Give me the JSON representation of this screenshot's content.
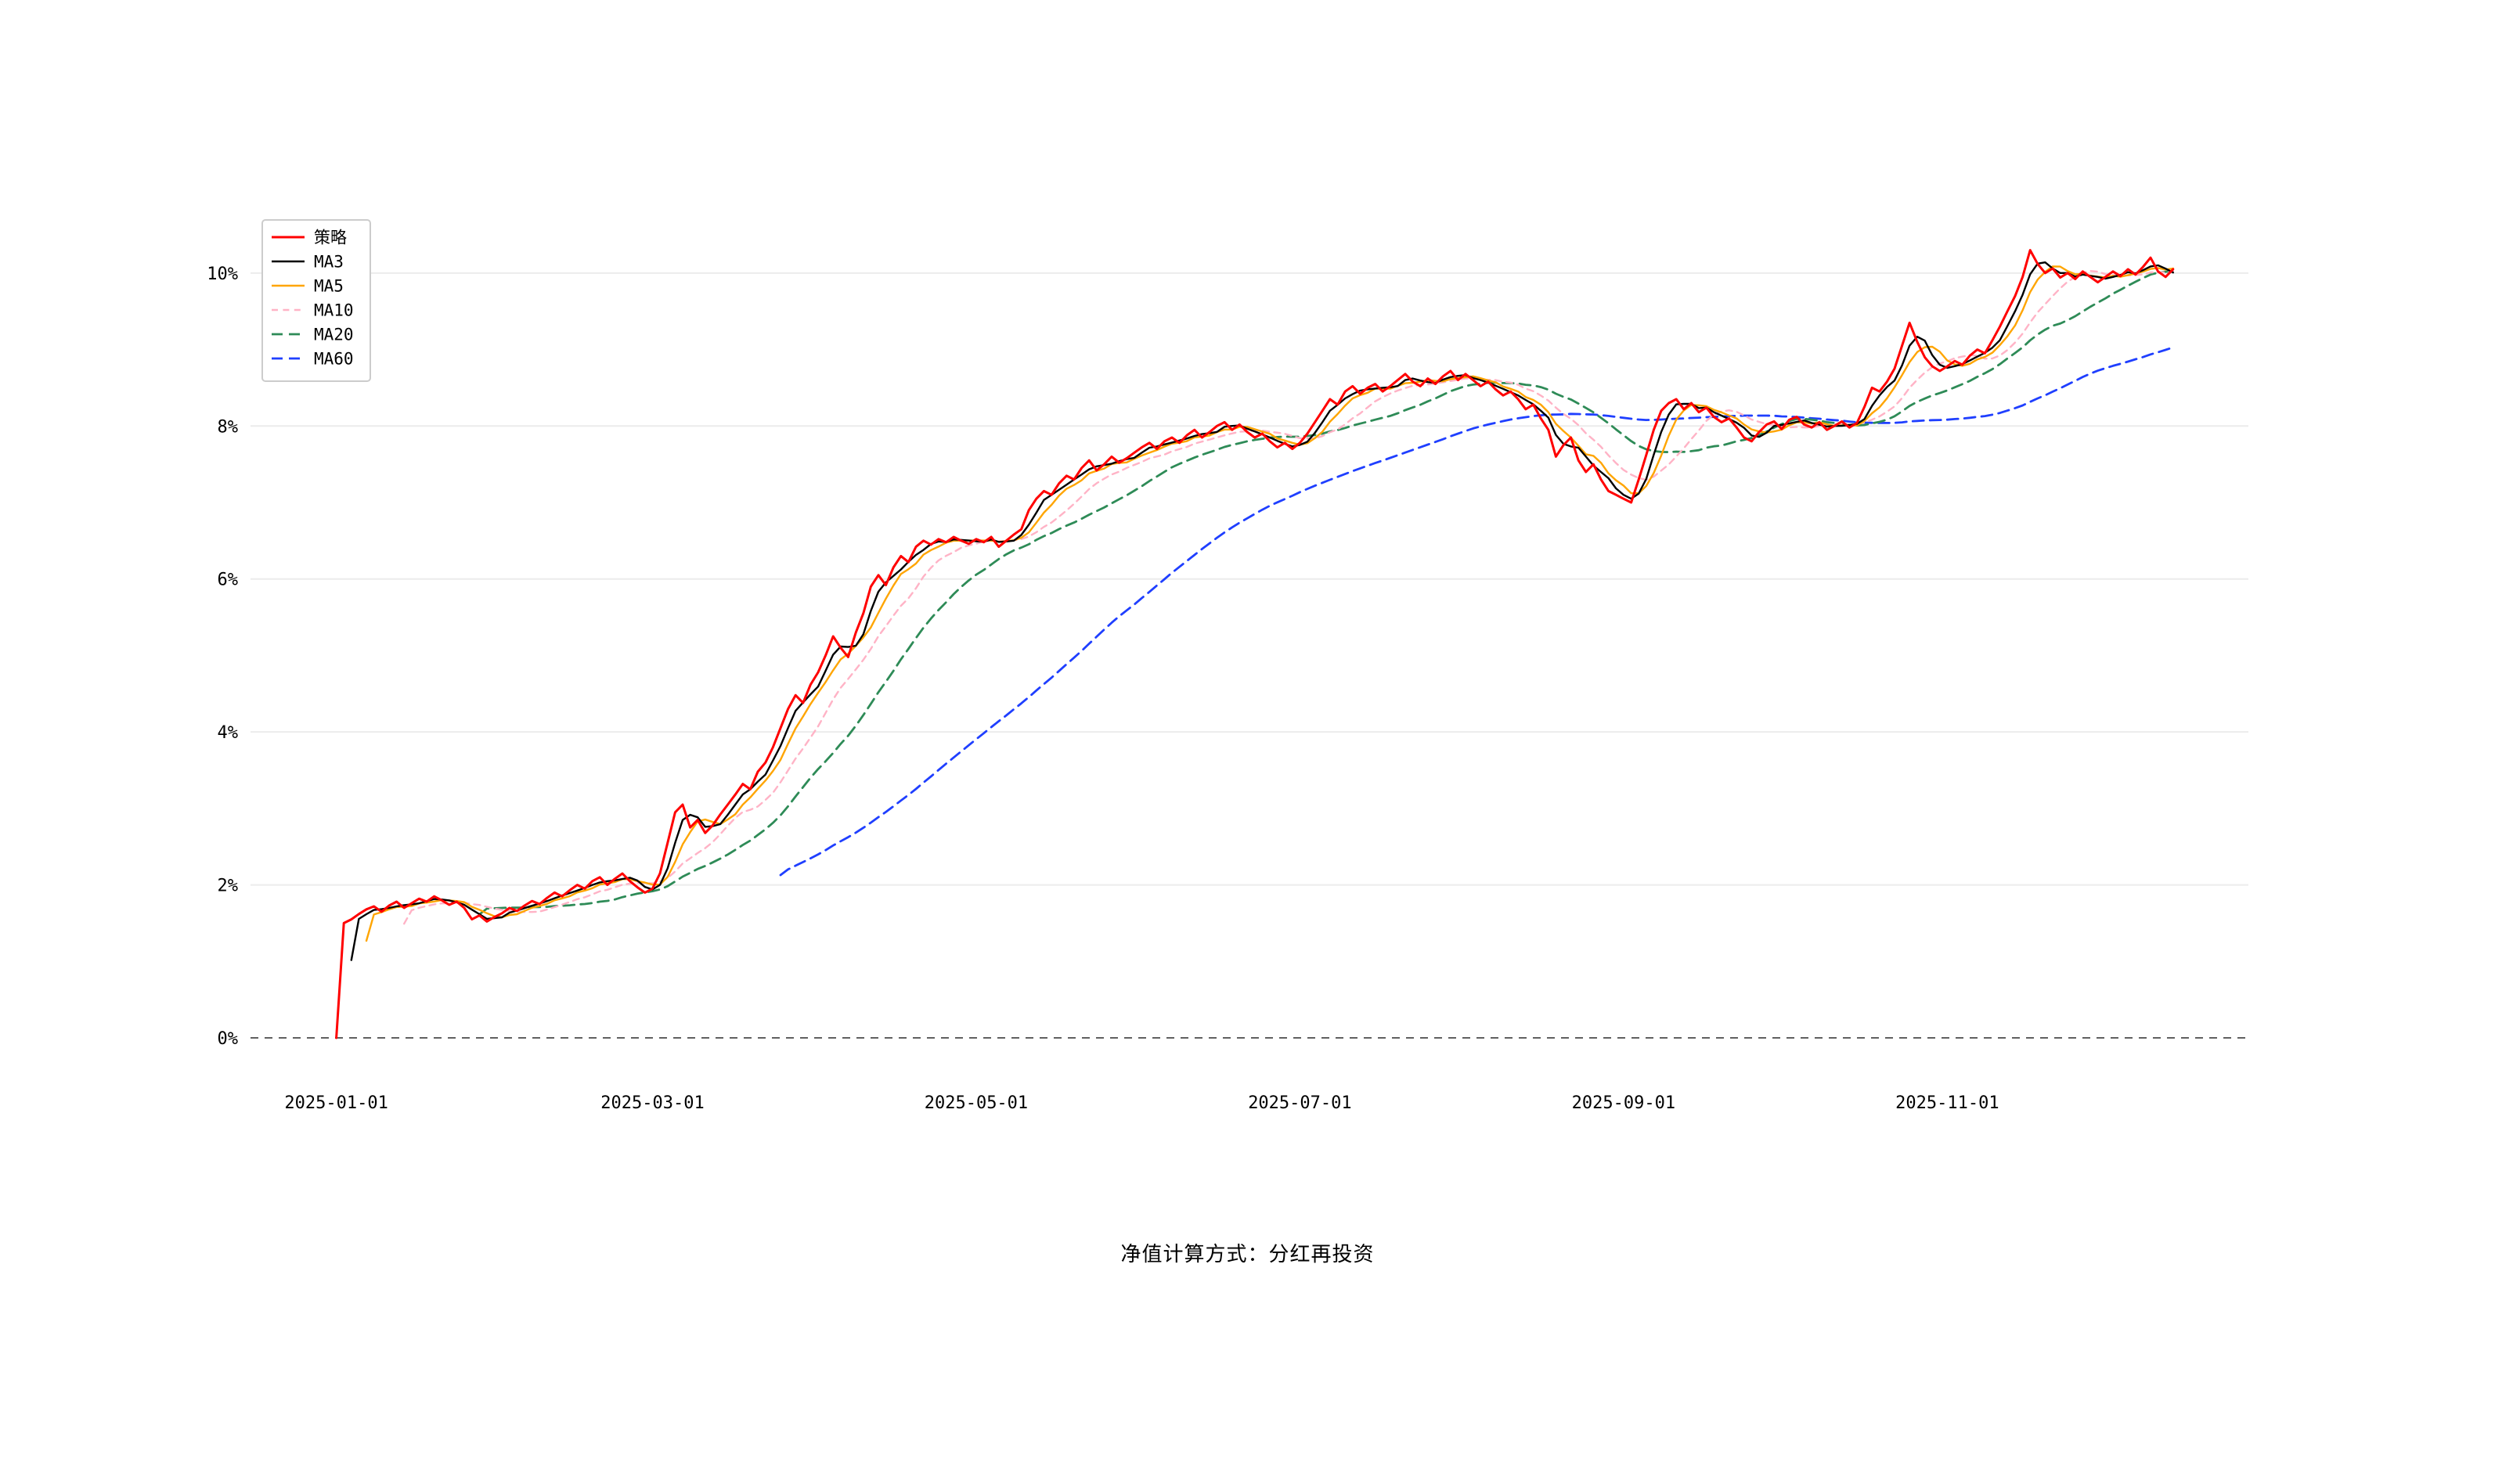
{
  "caption": "净值计算方式：分红再投资",
  "chart_data": {
    "type": "line",
    "title": "",
    "xlabel": "",
    "ylabel": "",
    "y_unit": "%",
    "x_tick_labels": [
      "2025-01-01",
      "2025-03-01",
      "2025-05-01",
      "2025-07-01",
      "2025-09-01",
      "2025-11-01"
    ],
    "x_tick_days": [
      0,
      42,
      85,
      128,
      171,
      214
    ],
    "y_ticks": [
      0,
      2,
      4,
      6,
      8,
      10
    ],
    "ylim": [
      -0.45,
      10.95
    ],
    "xlim": [
      -11.4,
      254
    ],
    "grid": "horizontal-light",
    "zero_line": "black-dashed",
    "legend_position": "top-left-inside",
    "series": [
      {
        "id": "strategy",
        "name": "策略",
        "color": "#ff0000",
        "style": "solid",
        "type": "raw",
        "width": 1.5
      },
      {
        "id": "ma3",
        "name": "MA3",
        "color": "#000000",
        "style": "solid",
        "type": "ma",
        "window": 3,
        "width": 1.2
      },
      {
        "id": "ma5",
        "name": "MA5",
        "color": "#ffa500",
        "style": "solid",
        "type": "ma",
        "window": 5,
        "width": 1.2
      },
      {
        "id": "ma10",
        "name": "MA10",
        "color": "#ffb3c6",
        "style": "dashed",
        "type": "ma",
        "window": 10,
        "width": 1.2,
        "dash": [
          4,
          3.2
        ]
      },
      {
        "id": "ma20",
        "name": "MA20",
        "color": "#2e8b57",
        "style": "dashed",
        "type": "ma",
        "window": 20,
        "width": 1.4,
        "dash": [
          7,
          4
        ]
      },
      {
        "id": "ma60",
        "name": "MA60",
        "color": "#1f3fff",
        "style": "dashed",
        "type": "ma",
        "window": 60,
        "width": 1.4,
        "dash": [
          7,
          4
        ]
      }
    ],
    "strategy_values_pct": [
      0.0,
      1.5,
      1.55,
      1.62,
      1.68,
      1.72,
      1.65,
      1.73,
      1.78,
      1.7,
      1.76,
      1.82,
      1.78,
      1.85,
      1.8,
      1.74,
      1.78,
      1.7,
      1.55,
      1.6,
      1.52,
      1.58,
      1.63,
      1.7,
      1.66,
      1.73,
      1.79,
      1.75,
      1.83,
      1.9,
      1.85,
      1.93,
      2.0,
      1.95,
      2.05,
      2.1,
      2.0,
      2.08,
      2.15,
      2.05,
      1.97,
      1.9,
      1.95,
      2.15,
      2.55,
      2.95,
      3.05,
      2.75,
      2.85,
      2.68,
      2.78,
      2.92,
      3.05,
      3.18,
      3.32,
      3.25,
      3.48,
      3.6,
      3.8,
      4.05,
      4.3,
      4.48,
      4.38,
      4.62,
      4.78,
      5.0,
      5.25,
      5.1,
      4.98,
      5.3,
      5.55,
      5.9,
      6.05,
      5.92,
      6.15,
      6.3,
      6.22,
      6.42,
      6.5,
      6.45,
      6.52,
      6.48,
      6.55,
      6.5,
      6.46,
      6.52,
      6.48,
      6.55,
      6.42,
      6.5,
      6.58,
      6.65,
      6.9,
      7.05,
      7.15,
      7.1,
      7.25,
      7.35,
      7.3,
      7.45,
      7.55,
      7.42,
      7.5,
      7.6,
      7.52,
      7.58,
      7.65,
      7.72,
      7.78,
      7.7,
      7.8,
      7.85,
      7.78,
      7.88,
      7.95,
      7.85,
      7.92,
      8.0,
      8.05,
      7.95,
      8.02,
      7.92,
      7.85,
      7.9,
      7.8,
      7.72,
      7.78,
      7.7,
      7.78,
      7.9,
      8.05,
      8.2,
      8.35,
      8.28,
      8.45,
      8.52,
      8.42,
      8.5,
      8.55,
      8.45,
      8.52,
      8.6,
      8.68,
      8.58,
      8.52,
      8.62,
      8.55,
      8.65,
      8.72,
      8.6,
      8.68,
      8.6,
      8.52,
      8.58,
      8.48,
      8.4,
      8.45,
      8.35,
      8.22,
      8.28,
      8.1,
      7.95,
      7.6,
      7.75,
      7.85,
      7.55,
      7.4,
      7.5,
      7.3,
      7.15,
      7.1,
      7.05,
      7.0,
      7.3,
      7.62,
      7.95,
      8.2,
      8.3,
      8.35,
      8.22,
      8.3,
      8.18,
      8.24,
      8.12,
      8.05,
      8.1,
      7.98,
      7.85,
      7.8,
      7.92,
      8.02,
      8.06,
      7.96,
      8.08,
      8.12,
      8.02,
      7.98,
      8.05,
      7.95,
      8.0,
      8.06,
      7.98,
      8.04,
      8.25,
      8.5,
      8.45,
      8.58,
      8.75,
      9.05,
      9.35,
      9.1,
      8.9,
      8.78,
      8.72,
      8.78,
      8.85,
      8.8,
      8.92,
      9.0,
      8.95,
      9.12,
      9.3,
      9.5,
      9.7,
      9.95,
      10.3,
      10.12,
      10.0,
      10.06,
      9.94,
      10.0,
      9.92,
      10.02,
      9.95,
      9.88,
      9.95,
      10.02,
      9.96,
      10.05,
      9.98,
      10.08,
      10.2,
      10.02,
      9.95,
      10.05
    ]
  }
}
